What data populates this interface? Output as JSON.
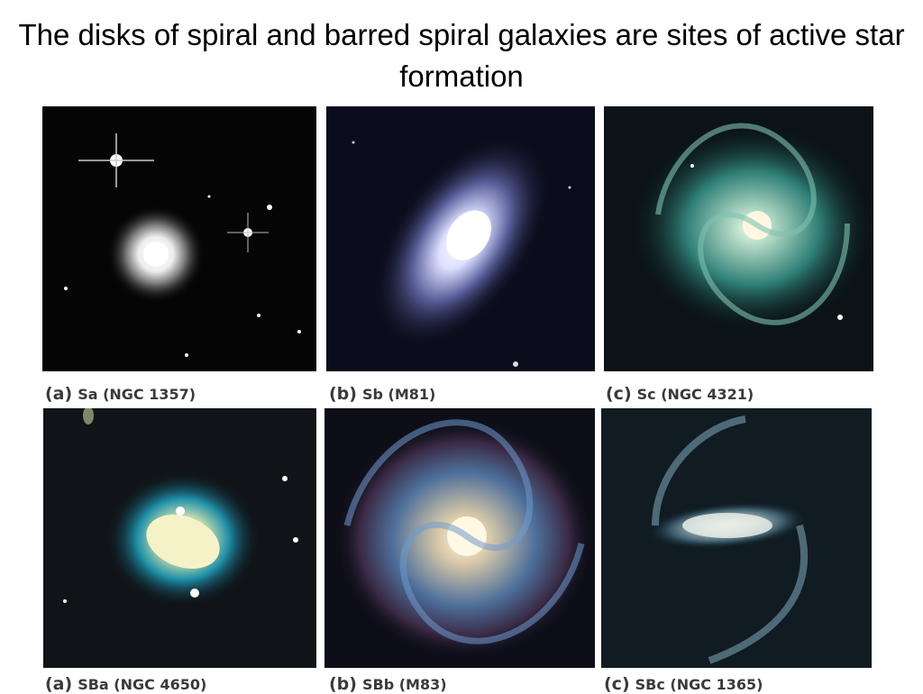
{
  "title": "The disks of spiral and barred spiral galaxies are sites of active star formation",
  "panels": [
    {
      "letter": "(a)",
      "label": "Sa (NGC 1357)"
    },
    {
      "letter": "(b)",
      "label": "Sb (M81)"
    },
    {
      "letter": "(c)",
      "label": "Sc (NGC 4321)"
    },
    {
      "letter": "(a)",
      "label": "SBa (NGC 4650)"
    },
    {
      "letter": "(b)",
      "label": "SBb (M83)"
    },
    {
      "letter": "(c)",
      "label": "SBc (NGC 1365)"
    }
  ]
}
